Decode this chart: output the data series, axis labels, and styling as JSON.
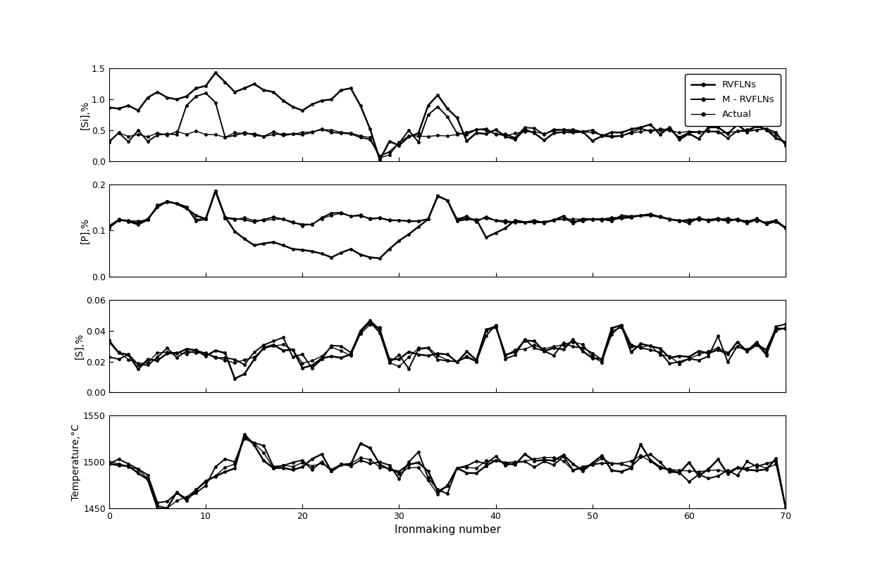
{
  "xlabel": "Ironmaking number",
  "subplots": [
    {
      "ylabel": "[Si],%",
      "ylim": [
        0,
        1.5
      ],
      "yticks": [
        0,
        0.5,
        1.0,
        1.5
      ]
    },
    {
      "ylabel": "[P],%",
      "ylim": [
        0,
        0.2
      ],
      "yticks": [
        0,
        0.1,
        0.2
      ]
    },
    {
      "ylabel": "[S],%",
      "ylim": [
        0,
        0.06
      ],
      "yticks": [
        0,
        0.02,
        0.04,
        0.06
      ]
    },
    {
      "ylabel": "Temperature,°C",
      "ylim": [
        1450,
        1550
      ],
      "yticks": [
        1450,
        1500,
        1550
      ]
    }
  ],
  "xlim": [
    0,
    70
  ],
  "xticks": [
    0,
    10,
    20,
    30,
    40,
    50,
    60,
    70
  ],
  "legend_labels": [
    "RVFLNs",
    "M - RVFLNs",
    "Actual"
  ],
  "n_points": 71
}
